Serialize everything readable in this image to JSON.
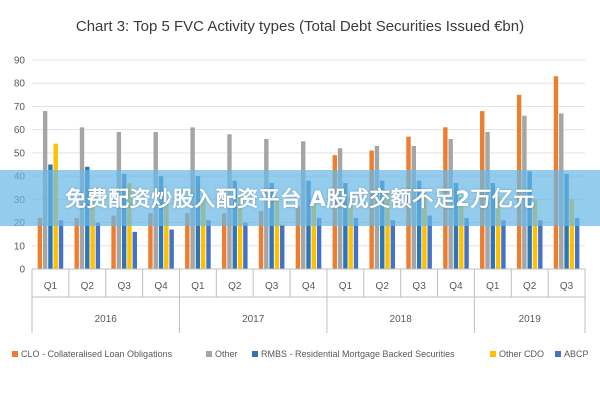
{
  "banner": {
    "text": "免费配资炒股入配资平台 A股成交额不足2万亿元"
  },
  "colors": {
    "CLO": "#ed7d31",
    "Other": "#a5a5a5",
    "RMBS": "#2e75b6",
    "CDO": "#ffc000",
    "ABCP": "#4472c4",
    "grid": "#e3e3e3",
    "axis": "#bfbfbf"
  },
  "chart_data": {
    "type": "bar",
    "title": "Chart 3: Top 5 FVC Activity types (Total Debt Securities Issued €bn)",
    "xlabel": "",
    "ylabel": "",
    "ylim": [
      0,
      90
    ],
    "yticks": [
      0,
      10,
      20,
      30,
      40,
      50,
      60,
      70,
      80,
      90
    ],
    "grid": true,
    "legend_position": "bottom",
    "categories": [
      "Q1",
      "Q2",
      "Q3",
      "Q4",
      "Q1",
      "Q2",
      "Q3",
      "Q4",
      "Q1",
      "Q2",
      "Q3",
      "Q4",
      "Q1",
      "Q2",
      "Q3"
    ],
    "groups": [
      {
        "label": "2016",
        "count": 4
      },
      {
        "label": "2017",
        "count": 4
      },
      {
        "label": "2018",
        "count": 4
      },
      {
        "label": "2019",
        "count": 3
      }
    ],
    "series": [
      {
        "key": "CLO",
        "name": "CLO - Collateralised Loan Obligations",
        "values": [
          22,
          22,
          23,
          24,
          24,
          24,
          25,
          27,
          49,
          51,
          57,
          61,
          68,
          75,
          83
        ]
      },
      {
        "key": "Other",
        "name": "Other",
        "values": [
          68,
          61,
          59,
          59,
          61,
          58,
          56,
          55,
          52,
          53,
          53,
          56,
          59,
          66,
          67
        ]
      },
      {
        "key": "RMBS",
        "name": "RMBS - Residential Mortgage Backed Securities",
        "values": [
          45,
          44,
          41,
          40,
          40,
          38,
          37,
          38,
          37,
          38,
          38,
          37,
          37,
          42,
          41
        ]
      },
      {
        "key": "CDO",
        "name": "Other CDO",
        "values": [
          54,
          31,
          37,
          30,
          30,
          32,
          31,
          30,
          31,
          33,
          33,
          31,
          31,
          30,
          30
        ]
      },
      {
        "key": "ABCP",
        "name": "ABCP",
        "values": [
          21,
          20,
          16,
          17,
          21,
          20,
          19,
          22,
          22,
          21,
          23,
          22,
          21,
          21,
          22
        ]
      }
    ]
  }
}
